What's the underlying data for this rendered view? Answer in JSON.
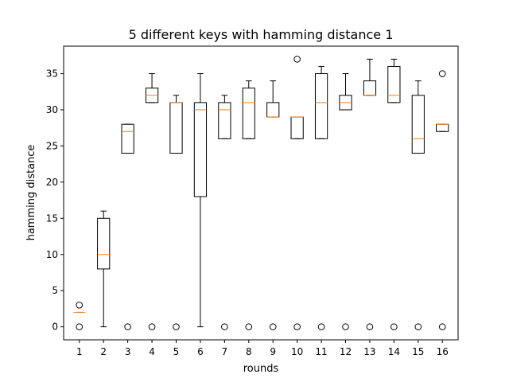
{
  "chart_data": {
    "type": "box",
    "title": "5 different keys with hamming distance 1",
    "xlabel": "rounds",
    "ylabel": "hamming distance",
    "ylim": [
      -1.8,
      38.8
    ],
    "yticks": [
      0,
      5,
      10,
      15,
      20,
      25,
      30,
      35
    ],
    "categories": [
      "1",
      "2",
      "3",
      "4",
      "5",
      "6",
      "7",
      "8",
      "9",
      "10",
      "11",
      "12",
      "13",
      "14",
      "15",
      "16"
    ],
    "grid": false,
    "colors": {
      "box": "#000000",
      "median": "#ff7f0e",
      "flier": "#000000"
    },
    "boxes": [
      {
        "label": "1",
        "whislo": 2,
        "q1": 2,
        "med": 2,
        "q3": 2,
        "whishi": 2,
        "fliers": [
          0,
          3
        ]
      },
      {
        "label": "2",
        "whislo": 0,
        "q1": 8,
        "med": 10,
        "q3": 15,
        "whishi": 16,
        "fliers": []
      },
      {
        "label": "3",
        "whislo": 24,
        "q1": 24,
        "med": 27,
        "q3": 28,
        "whishi": 28,
        "fliers": [
          0
        ]
      },
      {
        "label": "4",
        "whislo": 31,
        "q1": 31,
        "med": 32,
        "q3": 33,
        "whishi": 35,
        "fliers": [
          0
        ]
      },
      {
        "label": "5",
        "whislo": 24,
        "q1": 24,
        "med": 31,
        "q3": 31,
        "whishi": 32,
        "fliers": [
          0
        ]
      },
      {
        "label": "6",
        "whislo": 0,
        "q1": 18,
        "med": 30,
        "q3": 31,
        "whishi": 35,
        "fliers": []
      },
      {
        "label": "7",
        "whislo": 26,
        "q1": 26,
        "med": 30,
        "q3": 31,
        "whishi": 32,
        "fliers": [
          0
        ]
      },
      {
        "label": "8",
        "whislo": 26,
        "q1": 26,
        "med": 31,
        "q3": 33,
        "whishi": 34,
        "fliers": [
          0
        ]
      },
      {
        "label": "9",
        "whislo": 29,
        "q1": 29,
        "med": 29,
        "q3": 31,
        "whishi": 34,
        "fliers": [
          0
        ]
      },
      {
        "label": "10",
        "whislo": 26,
        "q1": 26,
        "med": 29,
        "q3": 29,
        "whishi": 29,
        "fliers": [
          0,
          37
        ]
      },
      {
        "label": "11",
        "whislo": 26,
        "q1": 26,
        "med": 31,
        "q3": 35,
        "whishi": 36,
        "fliers": [
          0
        ]
      },
      {
        "label": "12",
        "whislo": 30,
        "q1": 30,
        "med": 31,
        "q3": 32,
        "whishi": 35,
        "fliers": [
          0
        ]
      },
      {
        "label": "13",
        "whislo": 32,
        "q1": 32,
        "med": 32,
        "q3": 34,
        "whishi": 37,
        "fliers": [
          0
        ]
      },
      {
        "label": "14",
        "whislo": 31,
        "q1": 31,
        "med": 32,
        "q3": 36,
        "whishi": 37,
        "fliers": [
          0
        ]
      },
      {
        "label": "15",
        "whislo": 24,
        "q1": 24,
        "med": 26,
        "q3": 32,
        "whishi": 34,
        "fliers": [
          0
        ]
      },
      {
        "label": "16",
        "whislo": 27,
        "q1": 27,
        "med": 28,
        "q3": 28,
        "whishi": 28,
        "fliers": [
          0,
          35
        ]
      }
    ]
  }
}
